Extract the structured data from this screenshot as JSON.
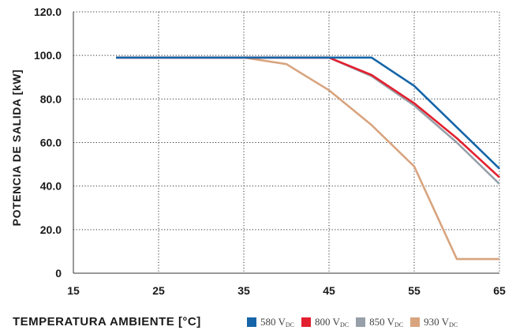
{
  "chart_data": {
    "type": "line",
    "xlabel": "TEMPERATURA AMBIENTE [°C]",
    "ylabel": "POTENCIA DE SALIDA [kW]",
    "xlim": [
      15,
      65
    ],
    "ylim": [
      0,
      120
    ],
    "x_ticks": [
      "15",
      "25",
      "35",
      "45",
      "55",
      "65"
    ],
    "x_tick_values": [
      15,
      25,
      35,
      45,
      55,
      65
    ],
    "y_ticks": [
      "0",
      "20.0",
      "40.0",
      "60.0",
      "80.0",
      "100.0",
      "120.0"
    ],
    "y_tick_values": [
      0,
      20,
      40,
      60,
      80,
      100,
      120
    ],
    "grid": true,
    "legend_position": "bottom-right",
    "series": [
      {
        "name": "580 V",
        "subscript": "DC",
        "color": "#1565a8",
        "x": [
          20,
          50,
          55,
          60,
          65
        ],
        "y": [
          99,
          99,
          86,
          67,
          48
        ]
      },
      {
        "name": "800 V",
        "subscript": "DC",
        "color": "#e3202f",
        "x": [
          20,
          45,
          50,
          55,
          60,
          65
        ],
        "y": [
          99,
          99,
          91,
          78,
          62,
          44
        ]
      },
      {
        "name": "850 V",
        "subscript": "DC",
        "color": "#97a0a8",
        "x": [
          20,
          45,
          50,
          55,
          60,
          65
        ],
        "y": [
          99,
          99,
          90.5,
          77,
          60,
          41
        ]
      },
      {
        "name": "930 V",
        "subscript": "DC",
        "color": "#d8a47f",
        "x": [
          20,
          35,
          40,
          45,
          50,
          55,
          60,
          65
        ],
        "y": [
          99,
          99,
          96,
          84,
          68,
          49,
          6.5,
          6.5
        ]
      }
    ]
  }
}
